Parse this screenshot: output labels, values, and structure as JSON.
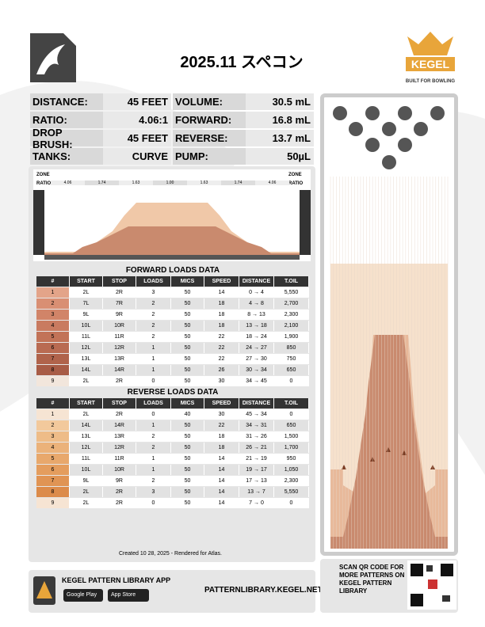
{
  "header": {
    "title": "2025.11 スペコン",
    "brand": "KEGEL",
    "tagline": "BUILT FOR BOWLING"
  },
  "specs": [
    {
      "label": "DISTANCE:",
      "value": "45 FEET"
    },
    {
      "label": "RATIO:",
      "value": "4.06:1"
    },
    {
      "label": "DROP BRUSH:",
      "value": "45 FEET"
    },
    {
      "label": "TANKS:",
      "value": "CURVE"
    },
    {
      "label": "VOLUME:",
      "value": "30.5 mL"
    },
    {
      "label": "FORWARD:",
      "value": "16.8 mL"
    },
    {
      "label": "REVERSE:",
      "value": "13.7 mL"
    },
    {
      "label": "PUMP:",
      "value": "50µL"
    }
  ],
  "zone_chart": {
    "zone_label": "ZONE",
    "ratio_label": "RATIO",
    "ratios": [
      "4.06",
      "1.74",
      "1.63",
      "1.00",
      "1.63",
      "1.74",
      "4.06"
    ]
  },
  "forward": {
    "title": "FORWARD LOADS DATA",
    "columns": [
      "#",
      "START",
      "STOP",
      "LOADS",
      "MICS",
      "SPEED",
      "DISTANCE",
      "T.OIL"
    ],
    "rows": [
      [
        "1",
        "2L",
        "2R",
        "3",
        "50",
        "14",
        "0 → 4",
        "5,550"
      ],
      [
        "2",
        "7L",
        "7R",
        "2",
        "50",
        "18",
        "4 → 8",
        "2,700"
      ],
      [
        "3",
        "9L",
        "9R",
        "2",
        "50",
        "18",
        "8 → 13",
        "2,300"
      ],
      [
        "4",
        "10L",
        "10R",
        "2",
        "50",
        "18",
        "13 → 18",
        "2,100"
      ],
      [
        "5",
        "11L",
        "11R",
        "2",
        "50",
        "22",
        "18 → 24",
        "1,900"
      ],
      [
        "6",
        "12L",
        "12R",
        "1",
        "50",
        "22",
        "24 → 27",
        "850"
      ],
      [
        "7",
        "13L",
        "13R",
        "1",
        "50",
        "22",
        "27 → 30",
        "750"
      ],
      [
        "8",
        "14L",
        "14R",
        "1",
        "50",
        "26",
        "30 → 34",
        "650"
      ],
      [
        "9",
        "2L",
        "2R",
        "0",
        "50",
        "30",
        "34 → 45",
        "0"
      ]
    ]
  },
  "reverse": {
    "title": "REVERSE LOADS DATA",
    "columns": [
      "#",
      "START",
      "STOP",
      "LOADS",
      "MICS",
      "SPEED",
      "DISTANCE",
      "T.OIL"
    ],
    "rows": [
      [
        "1",
        "2L",
        "2R",
        "0",
        "40",
        "30",
        "45 → 34",
        "0"
      ],
      [
        "2",
        "14L",
        "14R",
        "1",
        "50",
        "22",
        "34 → 31",
        "650"
      ],
      [
        "3",
        "13L",
        "13R",
        "2",
        "50",
        "18",
        "31 → 26",
        "1,500"
      ],
      [
        "4",
        "12L",
        "12R",
        "2",
        "50",
        "18",
        "26 → 21",
        "1,700"
      ],
      [
        "5",
        "11L",
        "11R",
        "1",
        "50",
        "14",
        "21 → 19",
        "950"
      ],
      [
        "6",
        "10L",
        "10R",
        "1",
        "50",
        "14",
        "19 → 17",
        "1,050"
      ],
      [
        "7",
        "9L",
        "9R",
        "2",
        "50",
        "14",
        "17 → 13",
        "2,300"
      ],
      [
        "8",
        "2L",
        "2R",
        "3",
        "50",
        "14",
        "13 → 7",
        "5,550"
      ],
      [
        "9",
        "2L",
        "2R",
        "0",
        "50",
        "14",
        "7 → 0",
        "0"
      ]
    ]
  },
  "footer": {
    "created": "Created 10 28, 2025 - Rendered for Atlas.",
    "app_title": "KEGEL PATTERN LIBRARY APP",
    "google_play": "Google Play",
    "app_store": "App Store",
    "url": "PATTERNLIBRARY.KEGEL.NET",
    "qr_text": "SCAN QR CODE FOR MORE PATTERNS ON KEGEL PATTERN LIBRARY"
  }
}
